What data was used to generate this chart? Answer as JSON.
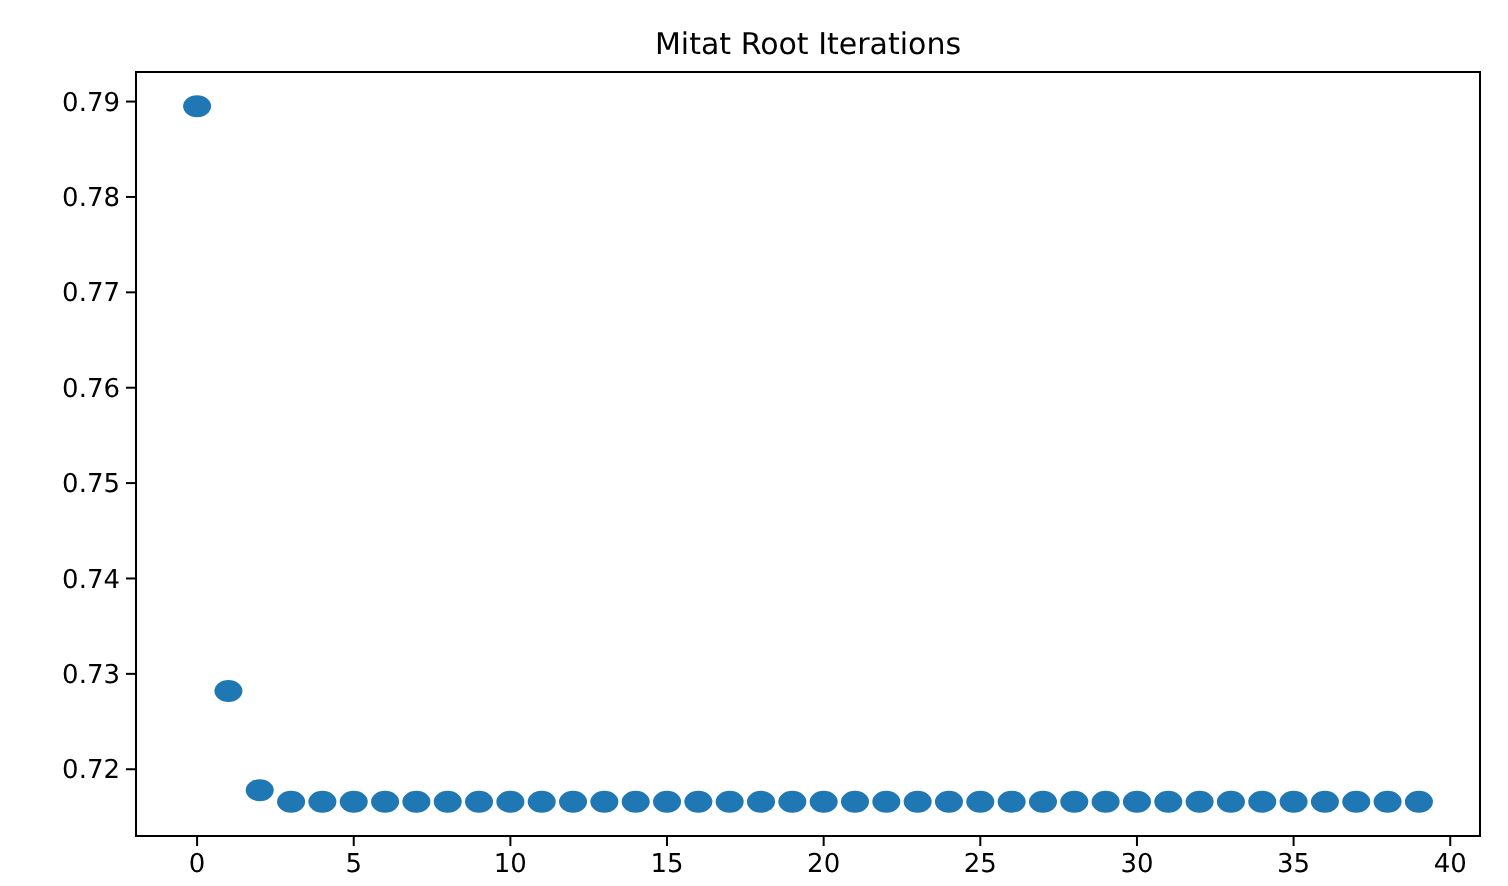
{
  "chart_data": {
    "type": "scatter",
    "title": "Mitat Root Iterations",
    "x": [
      0,
      1,
      2,
      3,
      4,
      5,
      6,
      7,
      8,
      9,
      10,
      11,
      12,
      13,
      14,
      15,
      16,
      17,
      18,
      19,
      20,
      21,
      22,
      23,
      24,
      25,
      26,
      27,
      28,
      29,
      30,
      31,
      32,
      33,
      34,
      35,
      36,
      37,
      38,
      39
    ],
    "series": [
      {
        "color": "#1f77b4",
        "values": [
          0.7895,
          0.7282,
          0.7178,
          0.7166,
          0.7166,
          0.7166,
          0.7166,
          0.7166,
          0.7166,
          0.7166,
          0.7166,
          0.7166,
          0.7166,
          0.7166,
          0.7166,
          0.7166,
          0.7166,
          0.7166,
          0.7166,
          0.7166,
          0.7166,
          0.7166,
          0.7166,
          0.7166,
          0.7166,
          0.7166,
          0.7166,
          0.7166,
          0.7166,
          0.7166,
          0.7166,
          0.7166,
          0.7166,
          0.7166,
          0.7166,
          0.7166,
          0.7166,
          0.7166,
          0.7166,
          0.7166
        ]
      }
    ],
    "xlim": [
      -1.95,
      40.95
    ],
    "xticks": [
      0,
      5,
      10,
      15,
      20,
      25,
      30,
      35,
      40
    ],
    "ylim": [
      0.713,
      0.7931
    ],
    "yticks": [
      0.72,
      0.73,
      0.74,
      0.75,
      0.76,
      0.77,
      0.78,
      0.79
    ],
    "marker": "circle",
    "grid": false
  }
}
